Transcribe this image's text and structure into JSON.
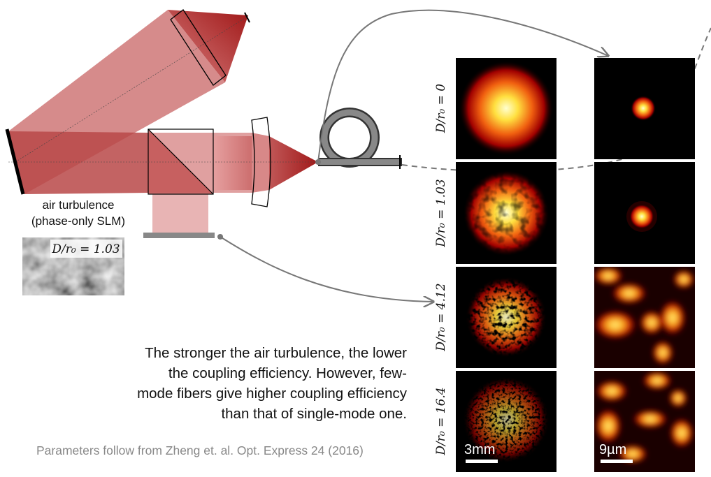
{
  "slm_label": [
    "air turbulence",
    "(phase-only SLM)"
  ],
  "inset_label": "D/r₀ = 1.03",
  "rows": [
    "D/r₀ = 0",
    "D/r₀ = 1.03",
    "D/r₀ = 4.12",
    "D/r₀ = 16.4"
  ],
  "scale_bars": [
    "3mm",
    "9µm"
  ],
  "caption": [
    "The stronger the air turbulence, the lower",
    "the coupling efficiency. However, few-",
    "mode fibers give higher coupling efficiency",
    "than that of single-mode one."
  ],
  "reference": "Parameters follow from Zheng et. al. Opt. Express 24 (2016)"
}
